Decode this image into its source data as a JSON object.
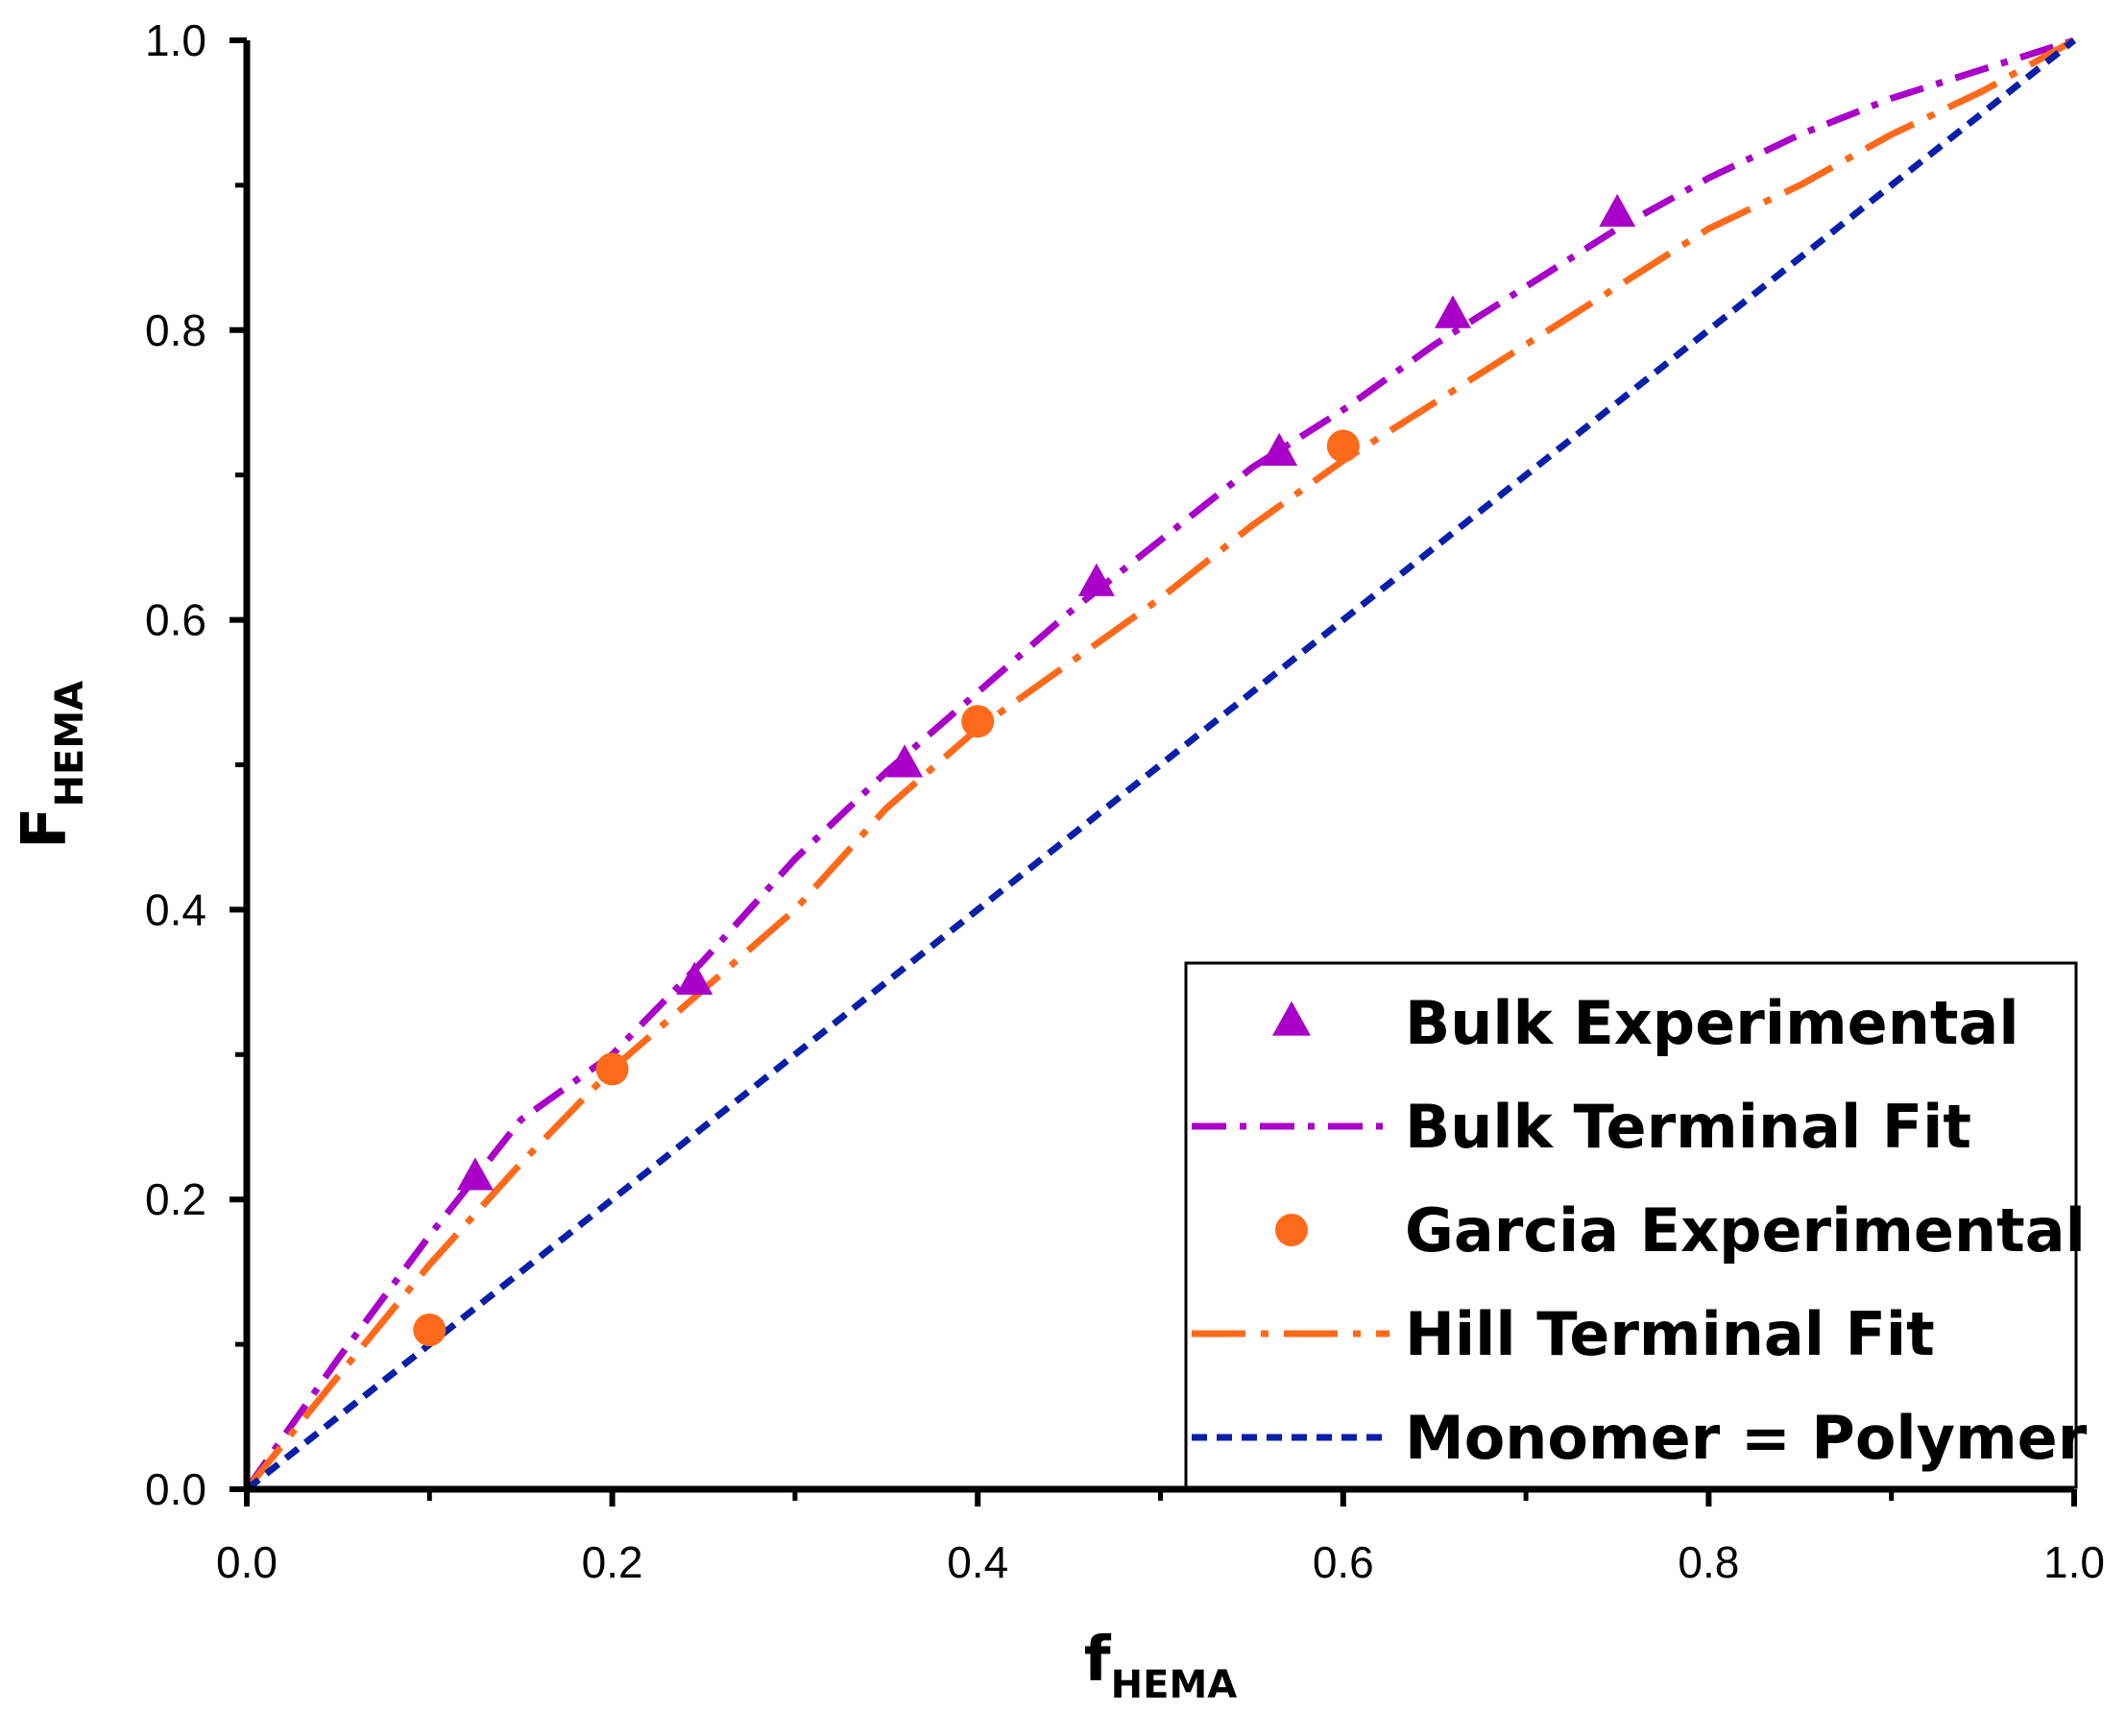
{
  "chart_data": {
    "type": "scatter",
    "title": "",
    "xlabel": {
      "main": "f",
      "sub": "HEMA"
    },
    "ylabel": {
      "main": "F",
      "sub": "HEMA"
    },
    "xlim": [
      0.0,
      1.0
    ],
    "ylim": [
      0.0,
      1.0
    ],
    "grid": false,
    "legend_position": "bottom-right",
    "x_ticks": [
      "0.0",
      "0.2",
      "0.4",
      "0.6",
      "0.8",
      "1.0"
    ],
    "y_ticks": [
      "0.0",
      "0.2",
      "0.4",
      "0.6",
      "0.8",
      "1.0"
    ],
    "colors": {
      "bulk": "#a800c8",
      "hill": "#ff6a1a",
      "monomer": "#0a1fa8",
      "axis": "#000000"
    },
    "series": [
      {
        "name": "Bulk Experimental",
        "kind": "marker",
        "marker": "triangle",
        "color_key": "bulk",
        "x": [
          0.125,
          0.245,
          0.36,
          0.465,
          0.565,
          0.66,
          0.75
        ],
        "y": [
          0.215,
          0.35,
          0.5,
          0.625,
          0.715,
          0.81,
          0.88
        ]
      },
      {
        "name": "Bulk Terminal Fit",
        "kind": "line",
        "dash": "dash-dot",
        "color_key": "bulk",
        "x": [
          0.0,
          0.05,
          0.1,
          0.15,
          0.2,
          0.25,
          0.3,
          0.35,
          0.4,
          0.45,
          0.5,
          0.55,
          0.6,
          0.65,
          0.7,
          0.75,
          0.8,
          0.85,
          0.9,
          0.95,
          1.0
        ],
        "y": [
          0.0,
          0.09,
          0.175,
          0.255,
          0.3,
          0.365,
          0.435,
          0.495,
          0.55,
          0.605,
          0.655,
          0.705,
          0.745,
          0.79,
          0.83,
          0.87,
          0.905,
          0.935,
          0.96,
          0.98,
          1.0
        ]
      },
      {
        "name": "Garcia Experimental",
        "kind": "marker",
        "marker": "circle",
        "color_key": "hill",
        "x": [
          0.1,
          0.2,
          0.4,
          0.6
        ],
        "y": [
          0.11,
          0.29,
          0.53,
          0.72
        ]
      },
      {
        "name": "Hill Terminal Fit",
        "kind": "line",
        "dash": "long-dash-dot",
        "color_key": "hill",
        "x": [
          0.0,
          0.05,
          0.1,
          0.15,
          0.2,
          0.25,
          0.3,
          0.35,
          0.4,
          0.45,
          0.5,
          0.55,
          0.6,
          0.65,
          0.7,
          0.75,
          0.8,
          0.85,
          0.9,
          0.95,
          1.0
        ],
        "y": [
          0.0,
          0.078,
          0.155,
          0.225,
          0.29,
          0.345,
          0.4,
          0.47,
          0.525,
          0.57,
          0.615,
          0.665,
          0.71,
          0.75,
          0.79,
          0.83,
          0.87,
          0.9,
          0.935,
          0.965,
          1.0
        ]
      },
      {
        "name": "Monomer = Polymer",
        "kind": "line",
        "dash": "short-dash",
        "color_key": "monomer",
        "x": [
          0.0,
          1.0
        ],
        "y": [
          0.0,
          1.0
        ]
      }
    ]
  }
}
